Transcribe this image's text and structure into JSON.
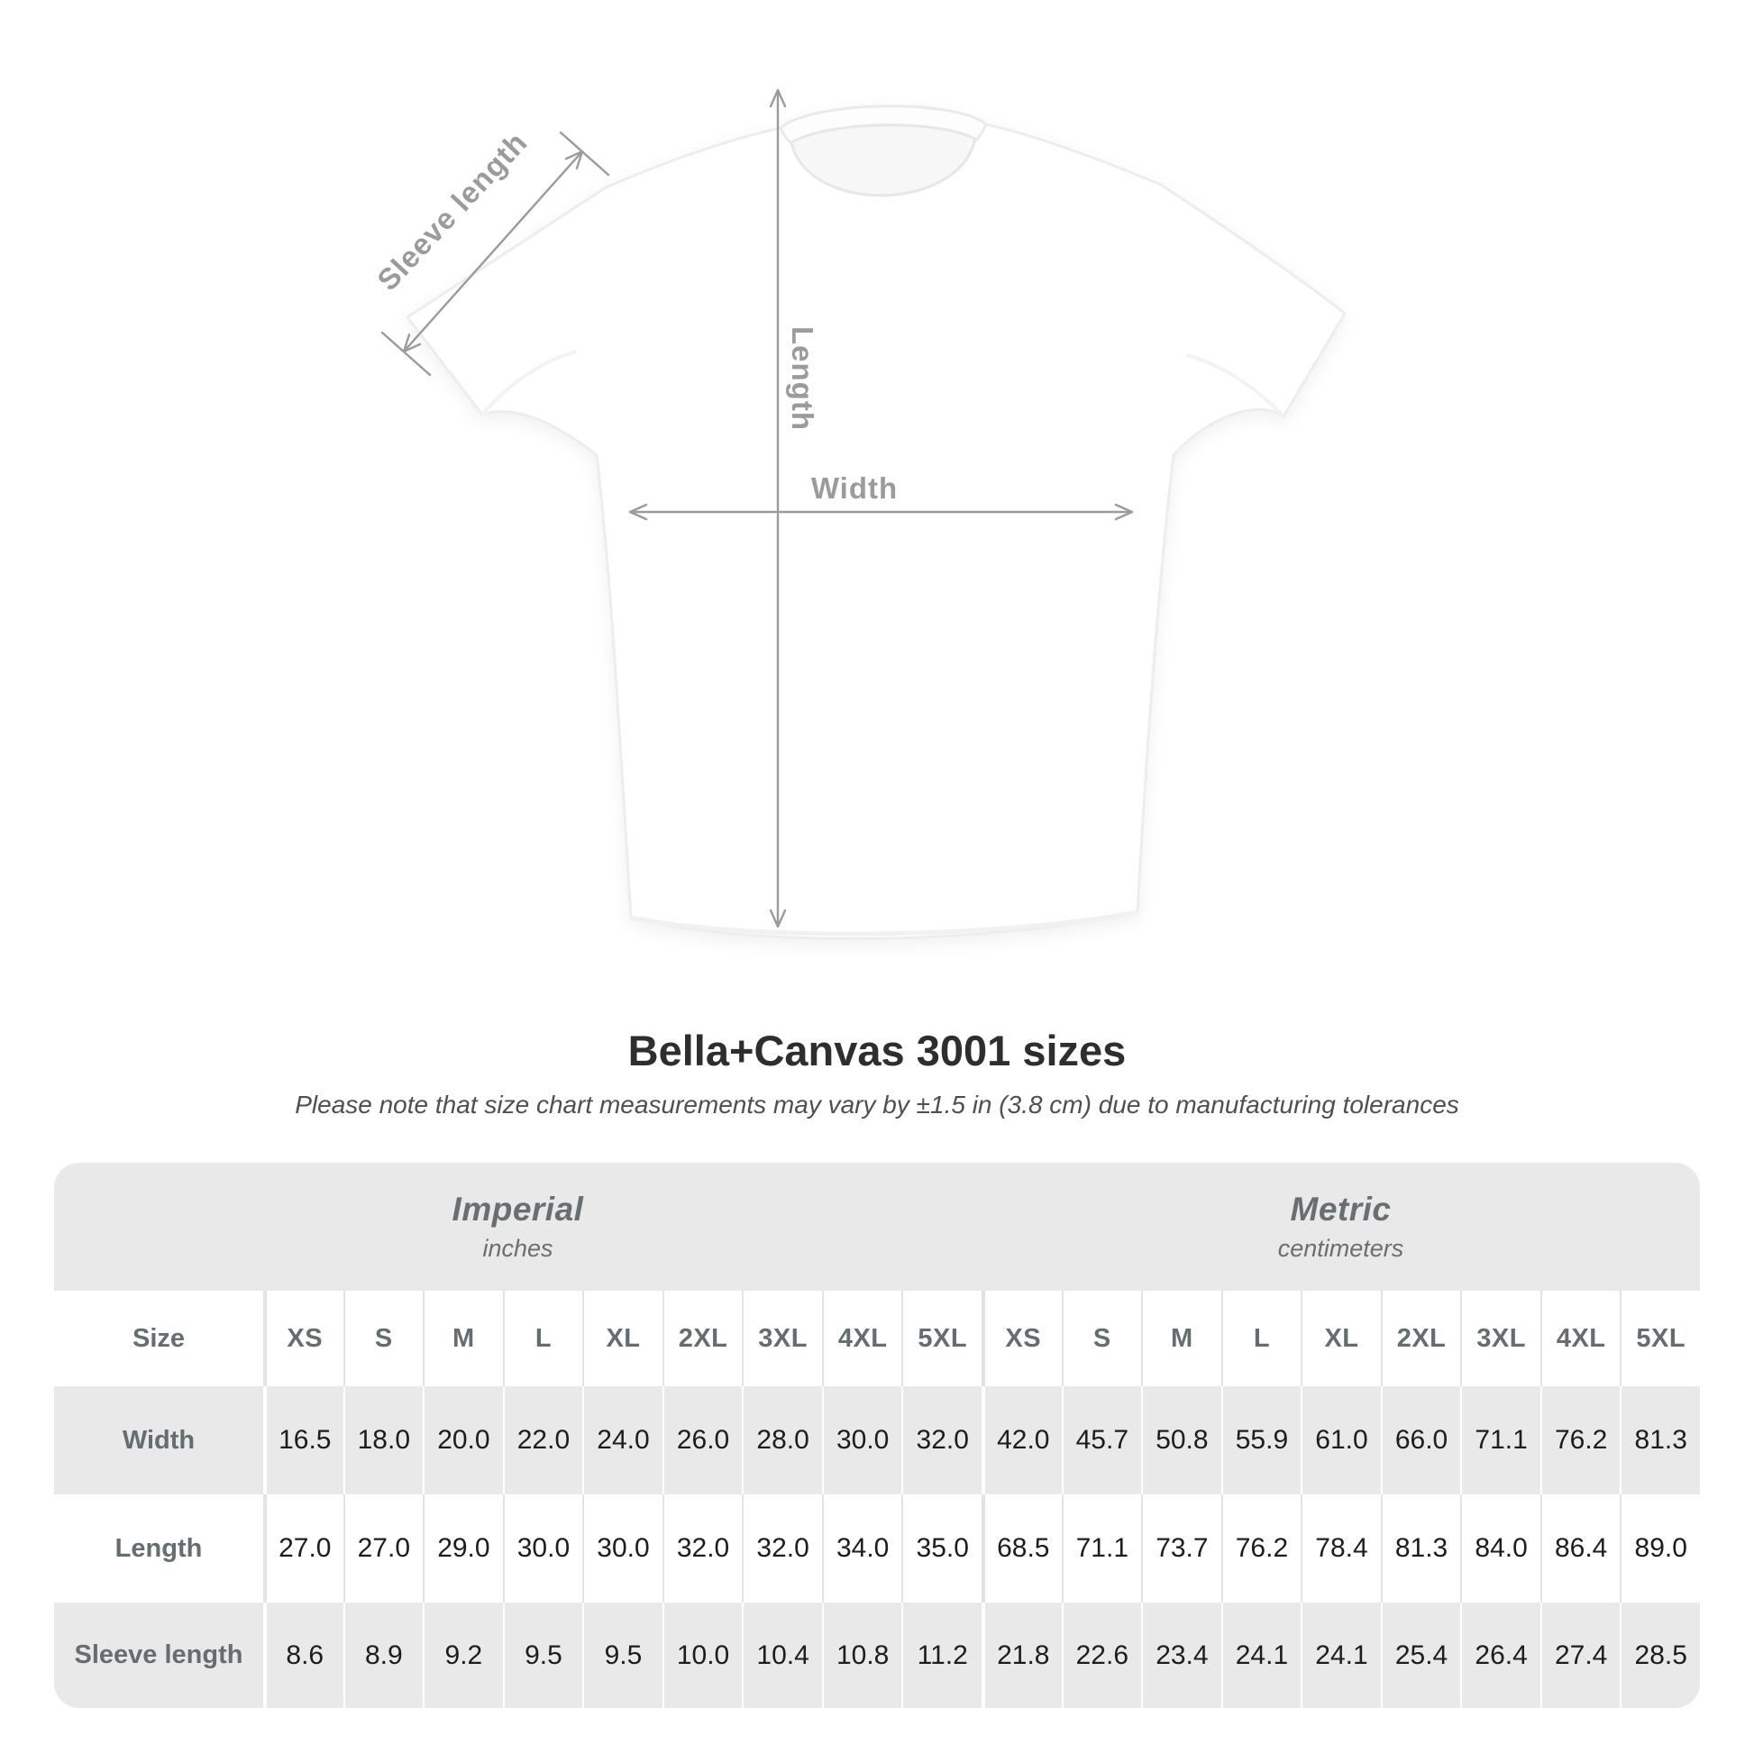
{
  "diagram": {
    "sleeve_label": "Sleeve length",
    "length_label": "Length",
    "width_label": "Width"
  },
  "title": "Bella+Canvas 3001 sizes",
  "note": "Please note that size chart measurements may vary by ±1.5 in (3.8 cm) due to manufacturing tolerances",
  "table": {
    "groups": [
      {
        "name": "Imperial",
        "unit": "inches"
      },
      {
        "name": "Metric",
        "unit": "centimeters"
      }
    ],
    "corner_label": "Size",
    "sizes": [
      "XS",
      "S",
      "M",
      "L",
      "XL",
      "2XL",
      "3XL",
      "4XL",
      "5XL"
    ],
    "rows": [
      {
        "label": "Width",
        "imperial": [
          "16.5",
          "18.0",
          "20.0",
          "22.0",
          "24.0",
          "26.0",
          "28.0",
          "30.0",
          "32.0"
        ],
        "metric": [
          "42.0",
          "45.7",
          "50.8",
          "55.9",
          "61.0",
          "66.0",
          "71.1",
          "76.2",
          "81.3"
        ]
      },
      {
        "label": "Length",
        "imperial": [
          "27.0",
          "27.0",
          "29.0",
          "30.0",
          "30.0",
          "32.0",
          "32.0",
          "34.0",
          "35.0"
        ],
        "metric": [
          "68.5",
          "71.1",
          "73.7",
          "76.2",
          "78.4",
          "81.3",
          "84.0",
          "86.4",
          "89.0"
        ]
      },
      {
        "label": "Sleeve length",
        "imperial": [
          "8.6",
          "8.9",
          "9.2",
          "9.5",
          "9.5",
          "10.0",
          "10.4",
          "10.8",
          "11.2"
        ],
        "metric": [
          "21.8",
          "22.6",
          "23.4",
          "24.1",
          "24.1",
          "25.4",
          "26.4",
          "27.4",
          "28.5"
        ]
      }
    ]
  },
  "colors": {
    "panel_background": "#e9e9e9",
    "arrow_gray": "#9b9b9b",
    "header_text": "#666d71",
    "value_text": "#1d1d1d",
    "title_text": "#2e2e2e"
  },
  "chart_data": {
    "type": "table",
    "title": "Bella+Canvas 3001 sizes",
    "note": "Please note that size chart measurements may vary by ±1.5 in (3.8 cm) due to manufacturing tolerances",
    "column_groups": [
      {
        "name": "Imperial",
        "unit": "inches",
        "columns": [
          "XS",
          "S",
          "M",
          "L",
          "XL",
          "2XL",
          "3XL",
          "4XL",
          "5XL"
        ]
      },
      {
        "name": "Metric",
        "unit": "centimeters",
        "columns": [
          "XS",
          "S",
          "M",
          "L",
          "XL",
          "2XL",
          "3XL",
          "4XL",
          "5XL"
        ]
      }
    ],
    "rows": [
      {
        "label": "Width",
        "imperial": [
          16.5,
          18.0,
          20.0,
          22.0,
          24.0,
          26.0,
          28.0,
          30.0,
          32.0
        ],
        "metric": [
          42.0,
          45.7,
          50.8,
          55.9,
          61.0,
          66.0,
          71.1,
          76.2,
          81.3
        ]
      },
      {
        "label": "Length",
        "imperial": [
          27.0,
          27.0,
          29.0,
          30.0,
          30.0,
          32.0,
          32.0,
          34.0,
          35.0
        ],
        "metric": [
          68.5,
          71.1,
          73.7,
          76.2,
          78.4,
          81.3,
          84.0,
          86.4,
          89.0
        ]
      },
      {
        "label": "Sleeve length",
        "imperial": [
          8.6,
          8.9,
          9.2,
          9.5,
          9.5,
          10.0,
          10.4,
          10.8,
          11.2
        ],
        "metric": [
          21.8,
          22.6,
          23.4,
          24.1,
          24.1,
          25.4,
          26.4,
          27.4,
          28.5
        ]
      }
    ]
  }
}
